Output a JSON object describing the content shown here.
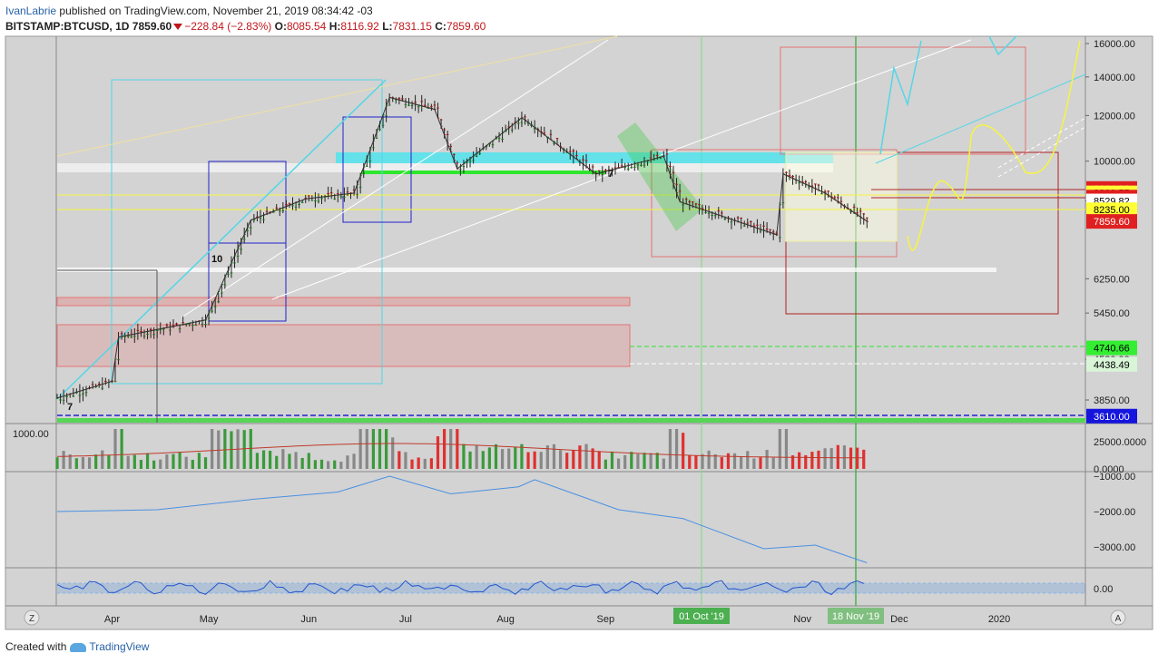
{
  "header": {
    "author": "IvanLabrie",
    "published": "published on TradingView.com, November 21, 2019 08:34:42 -03",
    "symbol": "BITSTAMP:BTCUSD, 1D",
    "last": "7859.60",
    "change": "−228.84 (−2.83%)",
    "open_label": "O:",
    "open": "8085.54",
    "high_label": "H:",
    "high": "8116.92",
    "low_label": "L:",
    "low": "7831.15",
    "close_label": "C:",
    "close": "7859.60"
  },
  "footer": {
    "prefix": "Created with",
    "brand": "TradingView"
  },
  "colors": {
    "pane_bg": "#d3d3d3",
    "up": "#26a69a",
    "down": "#ef5350",
    "cyan": "#53d6e6",
    "yellow": "#f5f542",
    "blue_box": "#2222cc",
    "red_box": "#b22222",
    "cmf_line": "#4a90e2"
  },
  "chart_data": [
    {
      "type": "candlestick",
      "symbol": "BITSTAMP:BTCUSD",
      "interval": "1D",
      "scale": "log",
      "ylim": [
        3500,
        16500
      ],
      "y_ticks": [
        "16000.00",
        "14000.00",
        "12000.00",
        "10000.00",
        "8529.82",
        "6250.00",
        "5450.00",
        "4530.00",
        "3850.00"
      ],
      "x_ticks": [
        "Apr",
        "May",
        "Jun",
        "Jul",
        "Aug",
        "Sep",
        "Oct",
        "Nov",
        "Dec",
        "2020"
      ],
      "x_highlight": [
        "01 Oct '19",
        "18 Nov '19"
      ],
      "price_labels": [
        {
          "value": "8964.88",
          "style": "red"
        },
        {
          "value": "8809.55",
          "style": "yellow"
        },
        {
          "value": "8662.66",
          "style": "red"
        },
        {
          "value": "8529.82",
          "style": "white"
        },
        {
          "value": "8235.00",
          "style": "yellow"
        },
        {
          "value": "7859.60",
          "style": "red"
        },
        {
          "value": "4740.66",
          "style": "green"
        },
        {
          "value": "4438.49",
          "style": "lightgreen"
        },
        {
          "value": "3610.00",
          "style": "blue"
        }
      ],
      "annotations": [
        "7",
        "10",
        "7"
      ],
      "monthly_close_path": [
        {
          "x": "Mar 15",
          "y": 3880
        },
        {
          "x": "Apr 01",
          "y": 4150
        },
        {
          "x": "Apr 03",
          "y": 4950
        },
        {
          "x": "Apr 30",
          "y": 5300
        },
        {
          "x": "May 14",
          "y": 7900
        },
        {
          "x": "May 31",
          "y": 8600
        },
        {
          "x": "Jun 15",
          "y": 8800
        },
        {
          "x": "Jun 26",
          "y": 12900
        },
        {
          "x": "Jul 10",
          "y": 12300
        },
        {
          "x": "Jul 17",
          "y": 9700
        },
        {
          "x": "Aug 06",
          "y": 11900
        },
        {
          "x": "Aug 29",
          "y": 9500
        },
        {
          "x": "Sep 19",
          "y": 10200
        },
        {
          "x": "Sep 24",
          "y": 8500
        },
        {
          "x": "Oct 24",
          "y": 7450
        },
        {
          "x": "Oct 26",
          "y": 9500
        },
        {
          "x": "Nov 08",
          "y": 8800
        },
        {
          "x": "Nov 21",
          "y": 7860
        }
      ]
    },
    {
      "type": "bar",
      "name": "Volume",
      "left_label": "1000.00",
      "y_ticks": [
        "25000.0000",
        "0.0000"
      ]
    },
    {
      "type": "line",
      "name": "Cumulative volume indicator",
      "y_ticks": [
        "−1000.00",
        "−2000.00",
        "−3000.00"
      ],
      "points": [
        {
          "x": "Mar 15",
          "y": -2000
        },
        {
          "x": "Apr 15",
          "y": -1950
        },
        {
          "x": "May 15",
          "y": -1650
        },
        {
          "x": "Jun 10",
          "y": -1450
        },
        {
          "x": "Jun 26",
          "y": -1000
        },
        {
          "x": "Jul 15",
          "y": -1500
        },
        {
          "x": "Aug 05",
          "y": -1300
        },
        {
          "x": "Aug 10",
          "y": -1100
        },
        {
          "x": "Sep 05",
          "y": -1950
        },
        {
          "x": "Sep 25",
          "y": -2200
        },
        {
          "x": "Oct 20",
          "y": -3050
        },
        {
          "x": "Nov 05",
          "y": -2950
        },
        {
          "x": "Nov 21",
          "y": -3450
        }
      ]
    },
    {
      "type": "line",
      "name": "Oscillator",
      "y_ticks": [
        "0.00"
      ]
    }
  ],
  "nav": {
    "zoom_left": "Z",
    "auto_scale": "A"
  }
}
